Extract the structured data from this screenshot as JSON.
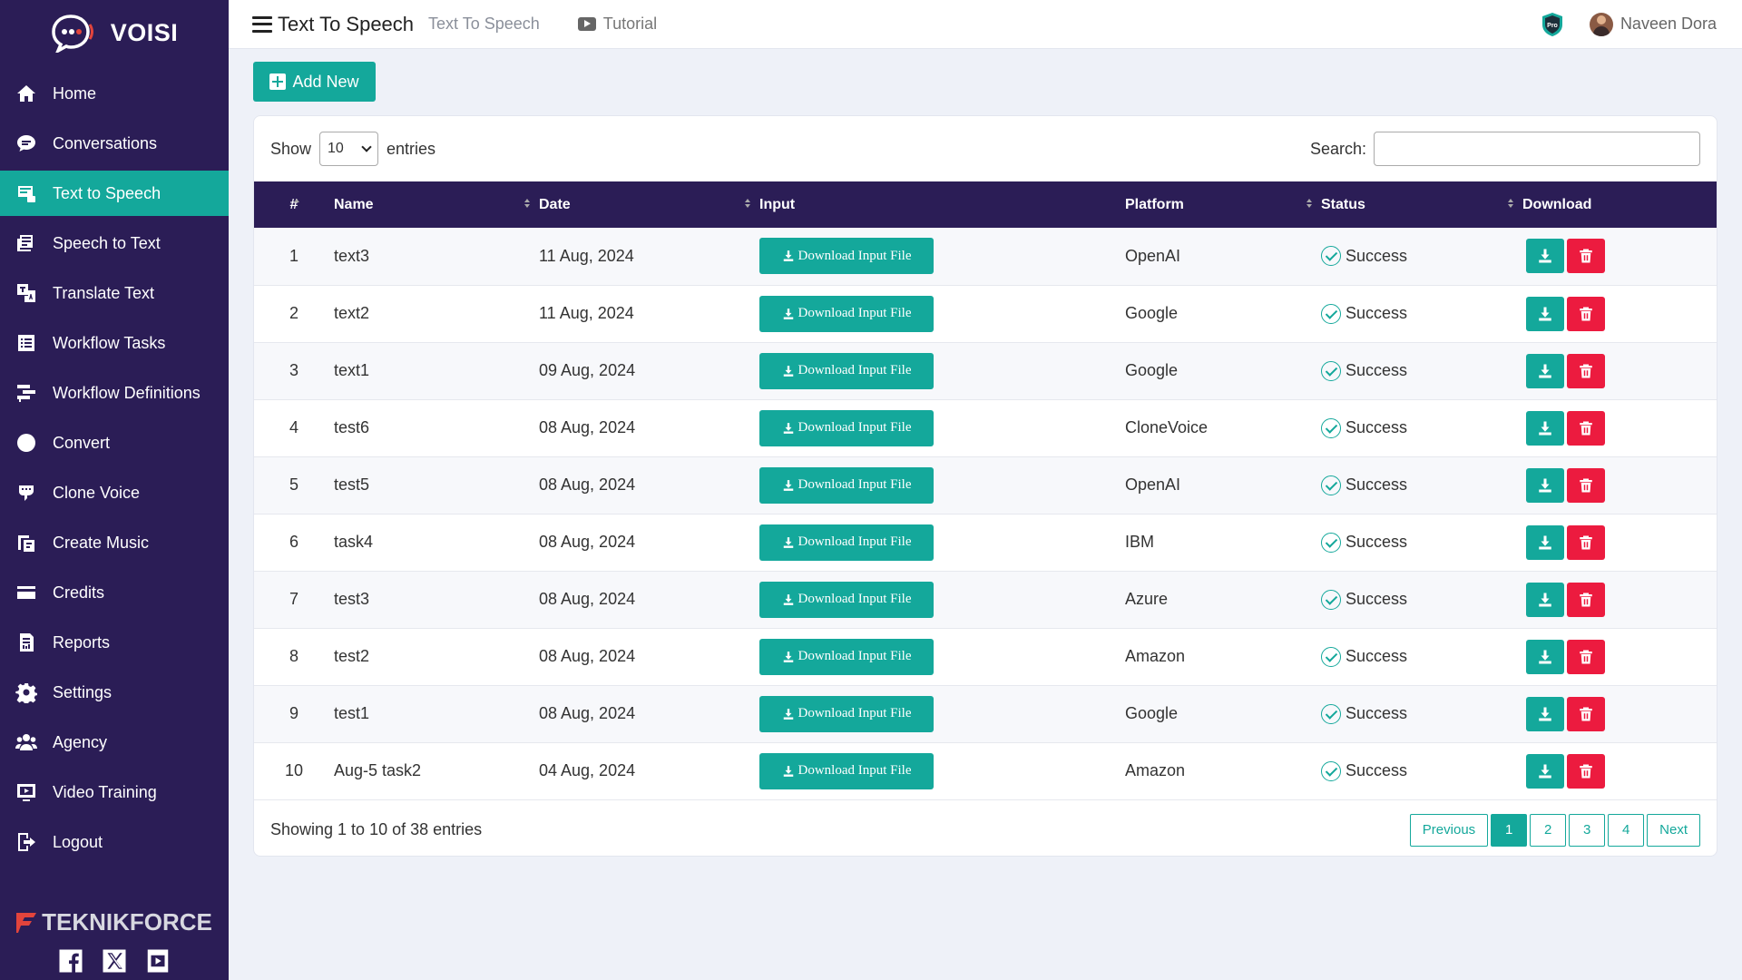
{
  "brand": {
    "app_name": "VOISI",
    "footer_brand": "TEKNIKFORCE"
  },
  "sidebar": {
    "items": [
      {
        "label": "Home",
        "icon": "home-icon"
      },
      {
        "label": "Conversations",
        "icon": "chat-icon"
      },
      {
        "label": "Text to Speech",
        "icon": "text-to-speech-icon",
        "active": true
      },
      {
        "label": "Speech to Text",
        "icon": "speech-to-text-icon"
      },
      {
        "label": "Translate Text",
        "icon": "translate-icon"
      },
      {
        "label": "Workflow Tasks",
        "icon": "tasks-icon"
      },
      {
        "label": "Workflow Definitions",
        "icon": "workflow-icon"
      },
      {
        "label": "Convert",
        "icon": "convert-icon"
      },
      {
        "label": "Clone Voice",
        "icon": "clone-voice-icon"
      },
      {
        "label": "Create Music",
        "icon": "music-icon"
      },
      {
        "label": "Credits",
        "icon": "credit-card-icon"
      },
      {
        "label": "Reports",
        "icon": "reports-icon"
      },
      {
        "label": "Settings",
        "icon": "gear-icon"
      },
      {
        "label": "Agency",
        "icon": "users-icon"
      },
      {
        "label": "Video Training",
        "icon": "video-training-icon"
      },
      {
        "label": "Logout",
        "icon": "logout-icon"
      }
    ]
  },
  "header": {
    "title": "Text To Speech",
    "breadcrumb": "Text To Speech",
    "tutorial_label": "Tutorial",
    "user_name": "Naveen Dora",
    "badge_text": "Pro"
  },
  "toolbar": {
    "add_new_label": "Add New"
  },
  "table_controls": {
    "show_label": "Show",
    "entries_label": "entries",
    "page_length": "10",
    "search_label": "Search:",
    "search_value": ""
  },
  "table": {
    "columns": [
      "#",
      "Name",
      "Date",
      "Input",
      "Platform",
      "Status",
      "Download"
    ],
    "download_input_label": "Download Input File",
    "rows": [
      {
        "num": "1",
        "name": "text3",
        "date": "11 Aug, 2024",
        "platform": "OpenAI",
        "status": "Success"
      },
      {
        "num": "2",
        "name": "text2",
        "date": "11 Aug, 2024",
        "platform": "Google",
        "status": "Success"
      },
      {
        "num": "3",
        "name": "text1",
        "date": "09 Aug, 2024",
        "platform": "Google",
        "status": "Success"
      },
      {
        "num": "4",
        "name": "test6",
        "date": "08 Aug, 2024",
        "platform": "CloneVoice",
        "status": "Success"
      },
      {
        "num": "5",
        "name": "test5",
        "date": "08 Aug, 2024",
        "platform": "OpenAI",
        "status": "Success"
      },
      {
        "num": "6",
        "name": "task4",
        "date": "08 Aug, 2024",
        "platform": "IBM",
        "status": "Success"
      },
      {
        "num": "7",
        "name": "test3",
        "date": "08 Aug, 2024",
        "platform": "Azure",
        "status": "Success"
      },
      {
        "num": "8",
        "name": "test2",
        "date": "08 Aug, 2024",
        "platform": "Amazon",
        "status": "Success"
      },
      {
        "num": "9",
        "name": "test1",
        "date": "08 Aug, 2024",
        "platform": "Google",
        "status": "Success"
      },
      {
        "num": "10",
        "name": "Aug-5 task2",
        "date": "04 Aug, 2024",
        "platform": "Amazon",
        "status": "Success"
      }
    ]
  },
  "footer": {
    "info": "Showing 1 to 10 of 38 entries",
    "pagination": {
      "previous": "Previous",
      "pages": [
        "1",
        "2",
        "3",
        "4"
      ],
      "current": "1",
      "next": "Next"
    }
  },
  "colors": {
    "sidebar_bg": "#2b1d56",
    "accent": "#14a89b",
    "danger": "#ec1b3f",
    "page_bg": "#eef1f8"
  }
}
